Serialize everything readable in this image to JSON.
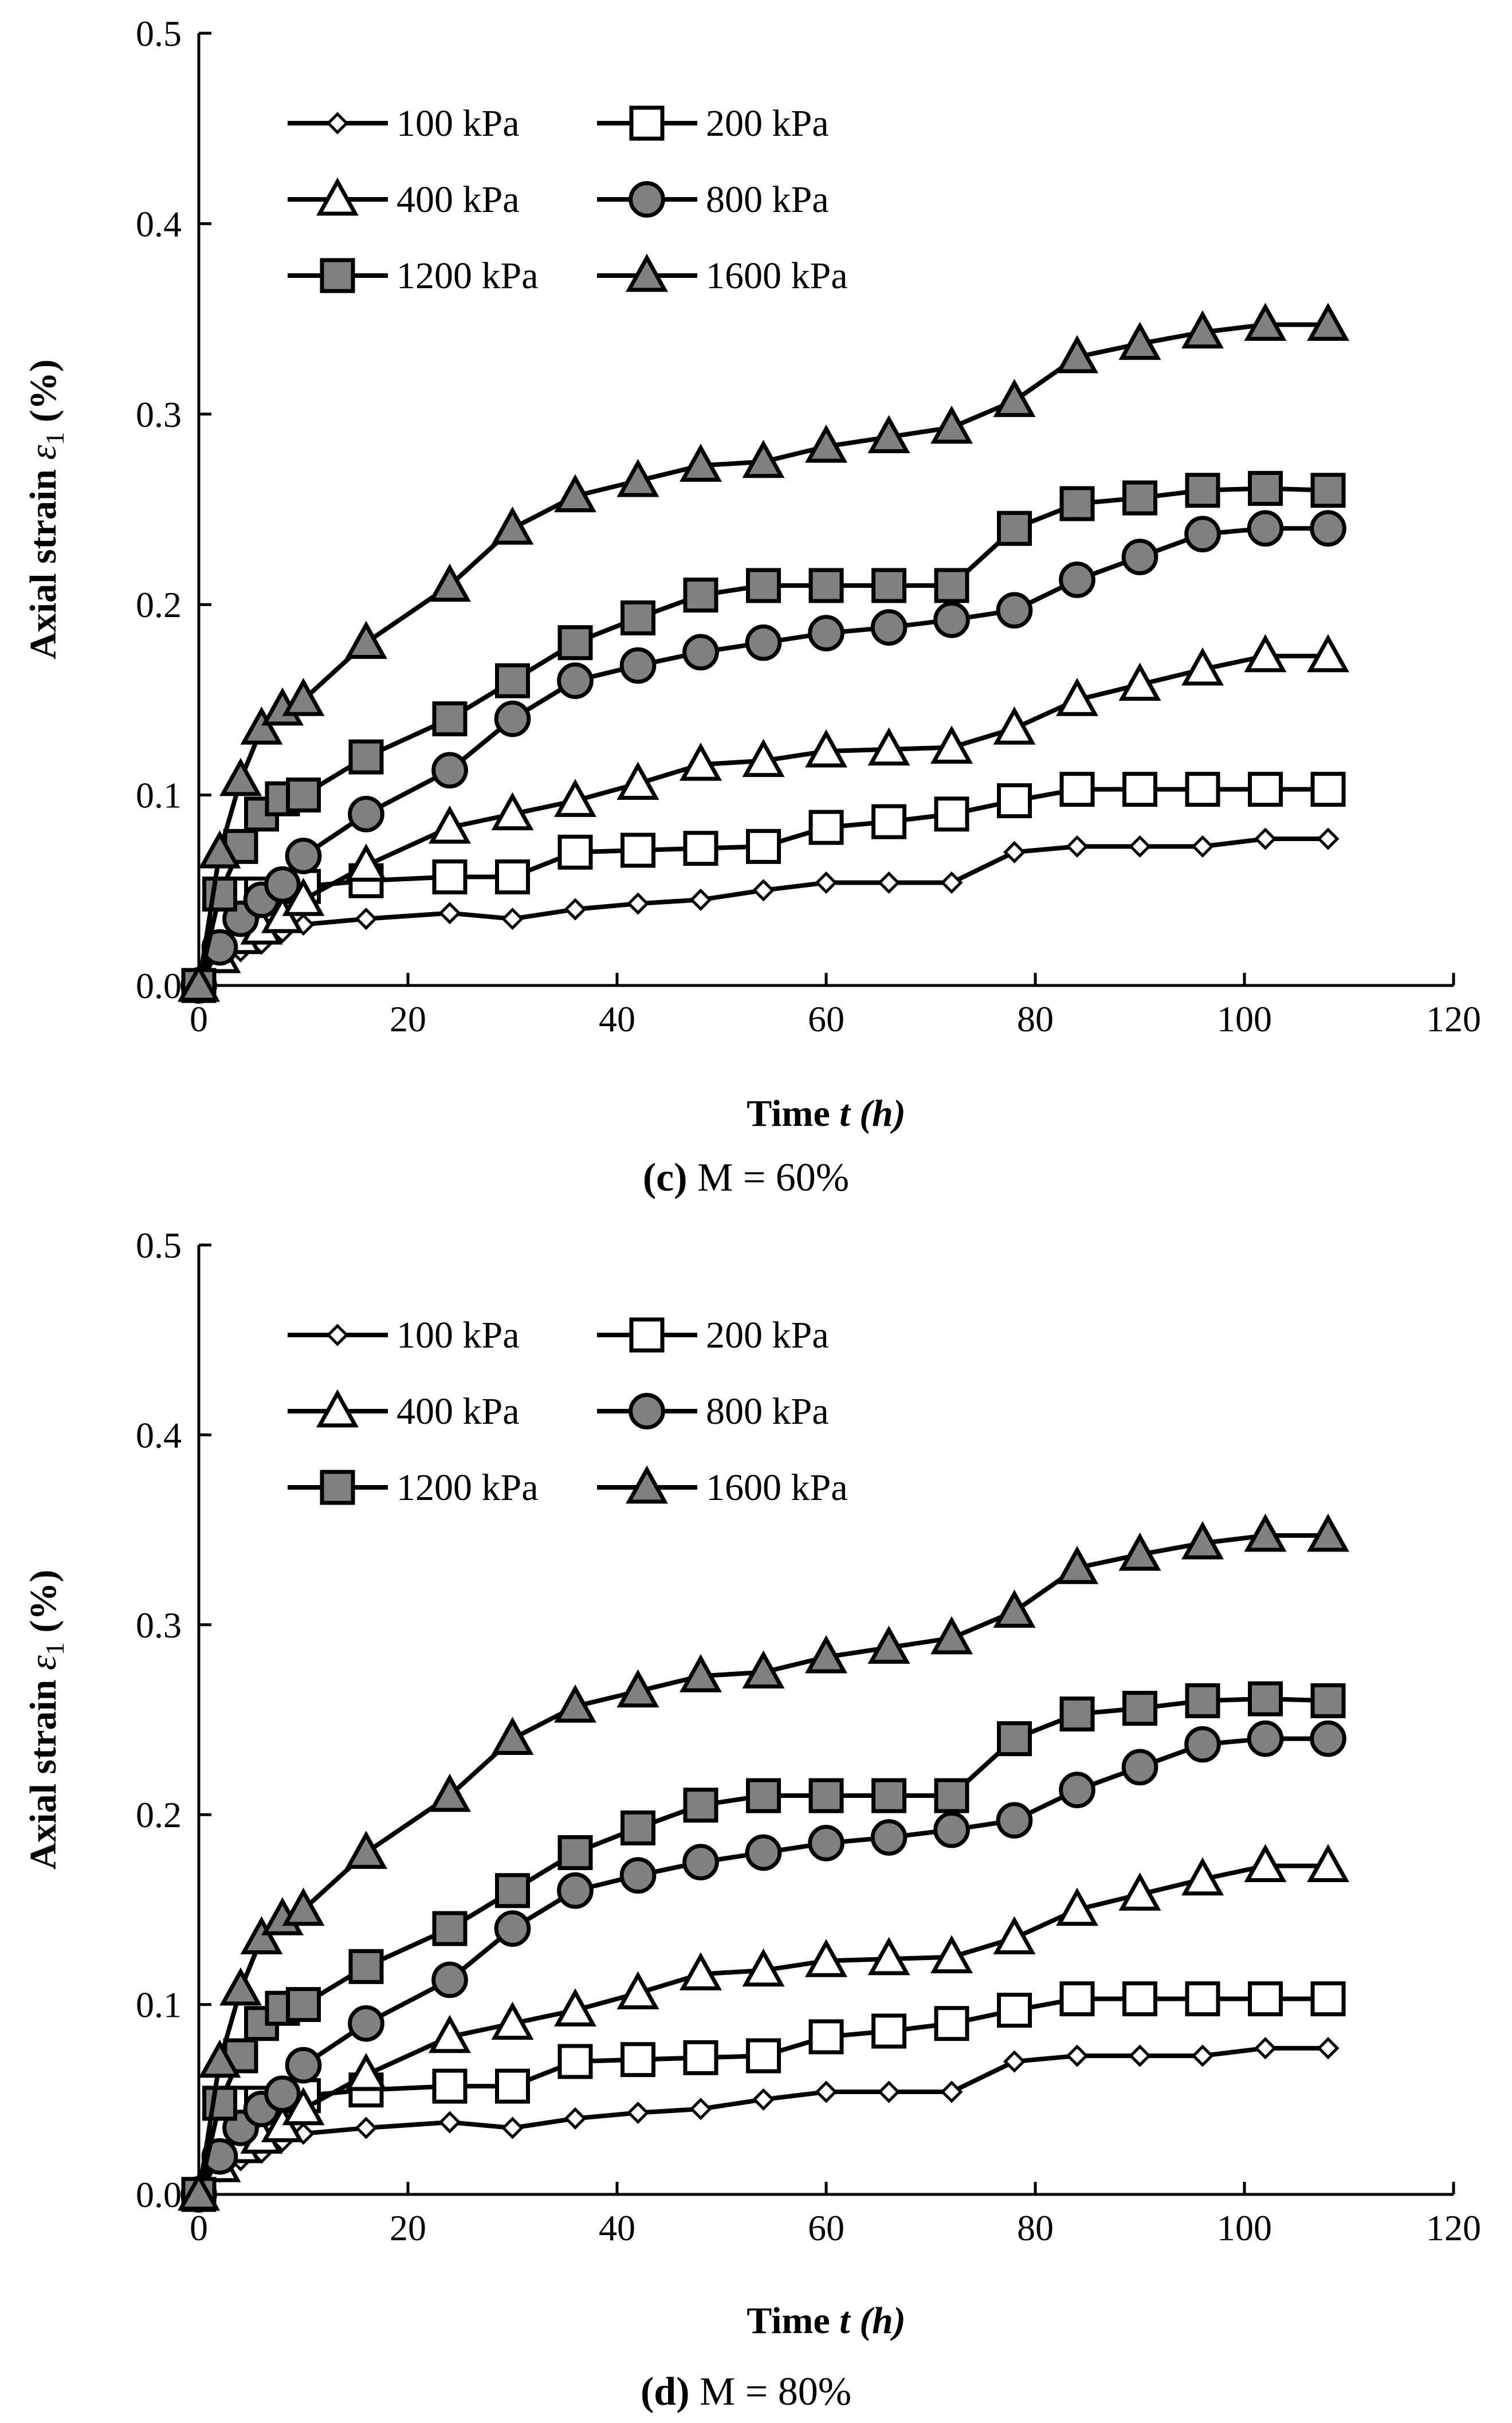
{
  "colors": {
    "axis": "#000000",
    "line": "#000000",
    "hollow": "#ffffff",
    "filled": "#808080"
  },
  "chart_data": [
    {
      "type": "line",
      "id": "c",
      "caption_letter": "(c)",
      "caption_rest": " M = 60%",
      "xlabel_main": "Time ",
      "xlabel_var": "t",
      "xlabel_unit": " (h)",
      "ylabel_main": "Axial strain ",
      "ylabel_var": "ε",
      "ylabel_sub": "1",
      "ylabel_unit": "  (%)",
      "xlim": [
        0,
        120
      ],
      "ylim": [
        0,
        0.5
      ],
      "xticks": [
        "0",
        "20",
        "40",
        "60",
        "80",
        "100",
        "120"
      ],
      "yticks": [
        "0.0",
        "0.1",
        "0.2",
        "0.3",
        "0.4",
        "0.5"
      ],
      "x": [
        0,
        2,
        4,
        6,
        8,
        10,
        16,
        24,
        30,
        36,
        42,
        48,
        54,
        60,
        66,
        72,
        78,
        84,
        90,
        96,
        102,
        108
      ],
      "series": [
        {
          "name": "100 kPa",
          "marker": "diamond",
          "fill": "hollow",
          "values": [
            0,
            0.012,
            0.018,
            0.022,
            0.028,
            0.032,
            0.035,
            0.038,
            0.035,
            0.04,
            0.043,
            0.045,
            0.05,
            0.054,
            0.054,
            0.054,
            0.07,
            0.073,
            0.073,
            0.073,
            0.077,
            0.077
          ]
        },
        {
          "name": "200 kPa",
          "marker": "square",
          "fill": "hollow",
          "values": [
            0,
            0.048,
            0.048,
            0.048,
            0.048,
            0.052,
            0.055,
            0.057,
            0.057,
            0.07,
            0.071,
            0.072,
            0.073,
            0.083,
            0.086,
            0.09,
            0.097,
            0.103,
            0.103,
            0.103,
            0.103,
            0.103
          ]
        },
        {
          "name": "400 kPa",
          "marker": "triangle",
          "fill": "hollow",
          "values": [
            0,
            0.015,
            0.025,
            0.03,
            0.036,
            0.045,
            0.063,
            0.083,
            0.09,
            0.097,
            0.106,
            0.116,
            0.118,
            0.123,
            0.124,
            0.125,
            0.135,
            0.15,
            0.158,
            0.166,
            0.173,
            0.173
          ]
        },
        {
          "name": "800 kPa",
          "marker": "circle",
          "fill": "filled",
          "values": [
            0,
            0.02,
            0.035,
            0.045,
            0.053,
            0.068,
            0.09,
            0.113,
            0.14,
            0.16,
            0.168,
            0.175,
            0.18,
            0.185,
            0.188,
            0.192,
            0.197,
            0.213,
            0.225,
            0.237,
            0.24,
            0.24
          ]
        },
        {
          "name": "1200 kPa",
          "marker": "square",
          "fill": "filled",
          "values": [
            0,
            0.048,
            0.073,
            0.09,
            0.098,
            0.1,
            0.12,
            0.14,
            0.16,
            0.18,
            0.193,
            0.205,
            0.21,
            0.21,
            0.21,
            0.21,
            0.24,
            0.253,
            0.256,
            0.26,
            0.261,
            0.26
          ]
        },
        {
          "name": "1600 kPa",
          "marker": "triangle",
          "fill": "filled",
          "values": [
            0,
            0.07,
            0.108,
            0.135,
            0.145,
            0.15,
            0.18,
            0.21,
            0.24,
            0.257,
            0.265,
            0.273,
            0.275,
            0.283,
            0.288,
            0.293,
            0.307,
            0.33,
            0.337,
            0.343,
            0.347,
            0.347
          ]
        }
      ]
    },
    {
      "type": "line",
      "id": "d",
      "caption_letter": "(d)",
      "caption_rest": " M = 80%",
      "xlabel_main": "Time ",
      "xlabel_var": "t",
      "xlabel_unit": " (h)",
      "ylabel_main": "Axial strain ",
      "ylabel_var": "ε",
      "ylabel_sub": "1",
      "ylabel_unit": "  (%)",
      "xlim": [
        0,
        120
      ],
      "ylim": [
        0,
        0.5
      ],
      "xticks": [
        "0",
        "20",
        "40",
        "60",
        "80",
        "100",
        "120"
      ],
      "yticks": [
        "0.0",
        "0.1",
        "0.2",
        "0.3",
        "0.4",
        "0.5"
      ],
      "x": [
        0,
        2,
        4,
        6,
        8,
        10,
        16,
        24,
        30,
        36,
        42,
        48,
        54,
        60,
        66,
        72,
        78,
        84,
        90,
        96,
        102,
        108
      ],
      "series": [
        {
          "name": "100 kPa",
          "marker": "diamond",
          "fill": "hollow",
          "values": [
            0,
            0.012,
            0.018,
            0.022,
            0.028,
            0.032,
            0.035,
            0.038,
            0.035,
            0.04,
            0.043,
            0.045,
            0.05,
            0.054,
            0.054,
            0.054,
            0.07,
            0.073,
            0.073,
            0.073,
            0.077,
            0.077
          ]
        },
        {
          "name": "200 kPa",
          "marker": "square",
          "fill": "hollow",
          "values": [
            0,
            0.048,
            0.048,
            0.048,
            0.048,
            0.052,
            0.055,
            0.057,
            0.057,
            0.07,
            0.071,
            0.072,
            0.073,
            0.083,
            0.086,
            0.09,
            0.097,
            0.103,
            0.103,
            0.103,
            0.103,
            0.103
          ]
        },
        {
          "name": "400 kPa",
          "marker": "triangle",
          "fill": "hollow",
          "values": [
            0,
            0.015,
            0.025,
            0.03,
            0.036,
            0.045,
            0.063,
            0.083,
            0.09,
            0.097,
            0.106,
            0.116,
            0.118,
            0.123,
            0.124,
            0.125,
            0.135,
            0.15,
            0.158,
            0.166,
            0.173,
            0.173
          ]
        },
        {
          "name": "800 kPa",
          "marker": "circle",
          "fill": "filled",
          "values": [
            0,
            0.02,
            0.035,
            0.045,
            0.053,
            0.068,
            0.09,
            0.113,
            0.14,
            0.16,
            0.168,
            0.175,
            0.18,
            0.185,
            0.188,
            0.192,
            0.197,
            0.213,
            0.225,
            0.237,
            0.24,
            0.24
          ]
        },
        {
          "name": "1200 kPa",
          "marker": "square",
          "fill": "filled",
          "values": [
            0,
            0.048,
            0.073,
            0.09,
            0.098,
            0.1,
            0.12,
            0.14,
            0.16,
            0.18,
            0.193,
            0.205,
            0.21,
            0.21,
            0.21,
            0.21,
            0.24,
            0.253,
            0.256,
            0.26,
            0.261,
            0.26
          ]
        },
        {
          "name": "1600 kPa",
          "marker": "triangle",
          "fill": "filled",
          "values": [
            0,
            0.07,
            0.108,
            0.135,
            0.145,
            0.15,
            0.18,
            0.21,
            0.24,
            0.257,
            0.265,
            0.273,
            0.275,
            0.283,
            0.288,
            0.293,
            0.307,
            0.33,
            0.337,
            0.343,
            0.347,
            0.347
          ]
        }
      ]
    }
  ]
}
